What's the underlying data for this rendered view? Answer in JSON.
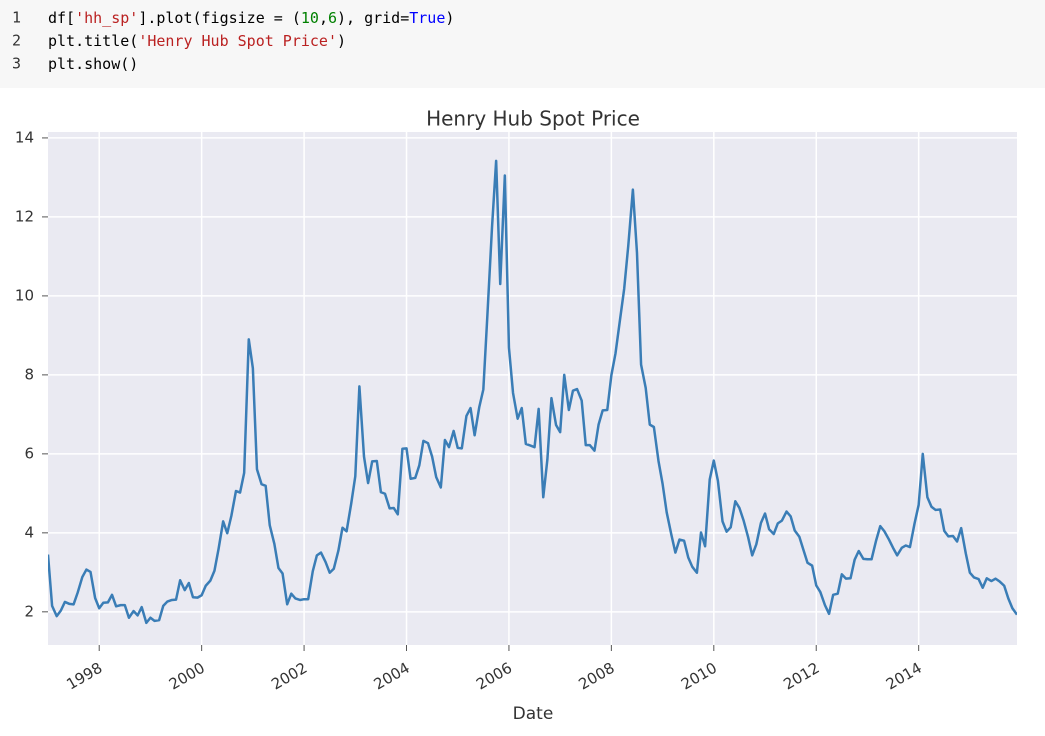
{
  "code": {
    "line_numbers": [
      "1",
      "2",
      "3"
    ],
    "lines": [
      [
        "df[",
        "'hh_sp'",
        "].plot(figsize = (",
        "10",
        ",",
        "6",
        "), grid=",
        "True",
        ")"
      ],
      [
        "plt.title(",
        "'Henry Hub Spot Price'",
        ")"
      ],
      [
        "plt.show()"
      ]
    ]
  },
  "chart_data": {
    "type": "line",
    "title": "Henry Hub Spot Price",
    "x_label": "Date",
    "grid": true,
    "xlim": [
      1997,
      2015.92
    ],
    "ylim": [
      1.16,
      14.15
    ],
    "xticks": [
      1998,
      2000,
      2002,
      2004,
      2006,
      2008,
      2010,
      2012,
      2014
    ],
    "yticks": [
      2,
      4,
      6,
      8,
      10,
      12,
      14
    ],
    "x": [
      1997.0,
      1997.08,
      1997.17,
      1997.25,
      1997.33,
      1997.42,
      1997.5,
      1997.58,
      1997.67,
      1997.75,
      1997.83,
      1997.92,
      1998.0,
      1998.08,
      1998.17,
      1998.25,
      1998.33,
      1998.42,
      1998.5,
      1998.58,
      1998.67,
      1998.75,
      1998.83,
      1998.92,
      1999.0,
      1999.08,
      1999.17,
      1999.25,
      1999.33,
      1999.42,
      1999.5,
      1999.58,
      1999.67,
      1999.75,
      1999.83,
      1999.92,
      2000.0,
      2000.08,
      2000.17,
      2000.25,
      2000.33,
      2000.42,
      2000.5,
      2000.58,
      2000.67,
      2000.75,
      2000.83,
      2000.92,
      2001.0,
      2001.08,
      2001.17,
      2001.25,
      2001.33,
      2001.42,
      2001.5,
      2001.58,
      2001.67,
      2001.75,
      2001.83,
      2001.92,
      2002.0,
      2002.08,
      2002.17,
      2002.25,
      2002.33,
      2002.42,
      2002.5,
      2002.58,
      2002.67,
      2002.75,
      2002.83,
      2002.92,
      2003.0,
      2003.08,
      2003.17,
      2003.25,
      2003.33,
      2003.42,
      2003.5,
      2003.58,
      2003.67,
      2003.75,
      2003.83,
      2003.92,
      2004.0,
      2004.08,
      2004.17,
      2004.25,
      2004.33,
      2004.42,
      2004.5,
      2004.58,
      2004.67,
      2004.75,
      2004.83,
      2004.92,
      2005.0,
      2005.08,
      2005.17,
      2005.25,
      2005.33,
      2005.42,
      2005.5,
      2005.58,
      2005.67,
      2005.75,
      2005.83,
      2005.92,
      2006.0,
      2006.08,
      2006.17,
      2006.25,
      2006.33,
      2006.42,
      2006.5,
      2006.58,
      2006.67,
      2006.75,
      2006.83,
      2006.92,
      2007.0,
      2007.08,
      2007.17,
      2007.25,
      2007.33,
      2007.42,
      2007.5,
      2007.58,
      2007.67,
      2007.75,
      2007.83,
      2007.92,
      2008.0,
      2008.08,
      2008.17,
      2008.25,
      2008.33,
      2008.42,
      2008.5,
      2008.58,
      2008.67,
      2008.75,
      2008.83,
      2008.92,
      2009.0,
      2009.08,
      2009.17,
      2009.25,
      2009.33,
      2009.42,
      2009.5,
      2009.58,
      2009.67,
      2009.75,
      2009.83,
      2009.92,
      2010.0,
      2010.08,
      2010.17,
      2010.25,
      2010.33,
      2010.42,
      2010.5,
      2010.58,
      2010.67,
      2010.75,
      2010.83,
      2010.92,
      2011.0,
      2011.08,
      2011.17,
      2011.25,
      2011.33,
      2011.42,
      2011.5,
      2011.58,
      2011.67,
      2011.75,
      2011.83,
      2011.92,
      2012.0,
      2012.08,
      2012.17,
      2012.25,
      2012.33,
      2012.42,
      2012.5,
      2012.58,
      2012.67,
      2012.75,
      2012.83,
      2012.92,
      2013.0,
      2013.08,
      2013.17,
      2013.25,
      2013.33,
      2013.42,
      2013.5,
      2013.58,
      2013.67,
      2013.75,
      2013.83,
      2013.92,
      2014.0,
      2014.08,
      2014.17,
      2014.25,
      2014.33,
      2014.42,
      2014.5,
      2014.58,
      2014.67,
      2014.75,
      2014.83,
      2014.92,
      2015.0,
      2015.08,
      2015.17,
      2015.25,
      2015.33,
      2015.42,
      2015.5,
      2015.58,
      2015.67,
      2015.75,
      2015.83,
      2015.92
    ],
    "series": [
      {
        "name": "hh_sp",
        "color": "#3a7db6",
        "values": [
          3.45,
          2.15,
          1.89,
          2.03,
          2.25,
          2.2,
          2.19,
          2.49,
          2.88,
          3.07,
          3.01,
          2.35,
          2.09,
          2.23,
          2.24,
          2.43,
          2.14,
          2.17,
          2.17,
          1.85,
          2.02,
          1.91,
          2.12,
          1.72,
          1.85,
          1.77,
          1.79,
          2.15,
          2.26,
          2.3,
          2.31,
          2.8,
          2.55,
          2.73,
          2.37,
          2.36,
          2.42,
          2.66,
          2.79,
          3.04,
          3.59,
          4.29,
          3.99,
          4.43,
          5.06,
          5.02,
          5.52,
          8.9,
          8.17,
          5.61,
          5.23,
          5.19,
          4.19,
          3.72,
          3.11,
          2.97,
          2.19,
          2.46,
          2.34,
          2.3,
          2.32,
          2.32,
          3.03,
          3.43,
          3.5,
          3.26,
          2.99,
          3.09,
          3.55,
          4.13,
          4.04,
          4.74,
          5.43,
          7.71,
          5.93,
          5.26,
          5.81,
          5.82,
          5.03,
          4.99,
          4.62,
          4.63,
          4.47,
          6.13,
          6.14,
          5.37,
          5.39,
          5.71,
          6.33,
          6.27,
          5.93,
          5.41,
          5.15,
          6.35,
          6.17,
          6.58,
          6.15,
          6.14,
          6.96,
          7.16,
          6.47,
          7.18,
          7.63,
          9.53,
          11.75,
          13.42,
          10.3,
          13.05,
          8.69,
          7.54,
          6.89,
          7.16,
          6.25,
          6.21,
          6.17,
          7.14,
          4.9,
          5.85,
          7.41,
          6.73,
          6.55,
          8.0,
          7.11,
          7.6,
          7.64,
          7.35,
          6.22,
          6.22,
          6.08,
          6.74,
          7.1,
          7.11,
          7.99,
          8.54,
          9.41,
          10.18,
          11.27,
          12.69,
          11.09,
          8.26,
          7.67,
          6.74,
          6.68,
          5.82,
          5.24,
          4.52,
          3.96,
          3.5,
          3.83,
          3.8,
          3.38,
          3.14,
          2.99,
          4.01,
          3.66,
          5.35,
          5.83,
          5.32,
          4.29,
          4.03,
          4.14,
          4.8,
          4.63,
          4.32,
          3.89,
          3.43,
          3.71,
          4.25,
          4.49,
          4.09,
          3.97,
          4.24,
          4.31,
          4.54,
          4.42,
          4.06,
          3.9,
          3.57,
          3.24,
          3.17,
          2.67,
          2.5,
          2.17,
          1.95,
          2.43,
          2.46,
          2.95,
          2.84,
          2.85,
          3.32,
          3.54,
          3.34,
          3.33,
          3.33,
          3.81,
          4.17,
          4.04,
          3.83,
          3.62,
          3.43,
          3.62,
          3.68,
          3.64,
          4.24,
          4.71,
          6.0,
          4.9,
          4.66,
          4.58,
          4.59,
          4.05,
          3.91,
          3.92,
          3.78,
          4.12,
          3.48,
          2.99,
          2.87,
          2.83,
          2.61,
          2.85,
          2.78,
          2.84,
          2.77,
          2.66,
          2.34,
          2.09,
          1.93
        ]
      }
    ]
  }
}
